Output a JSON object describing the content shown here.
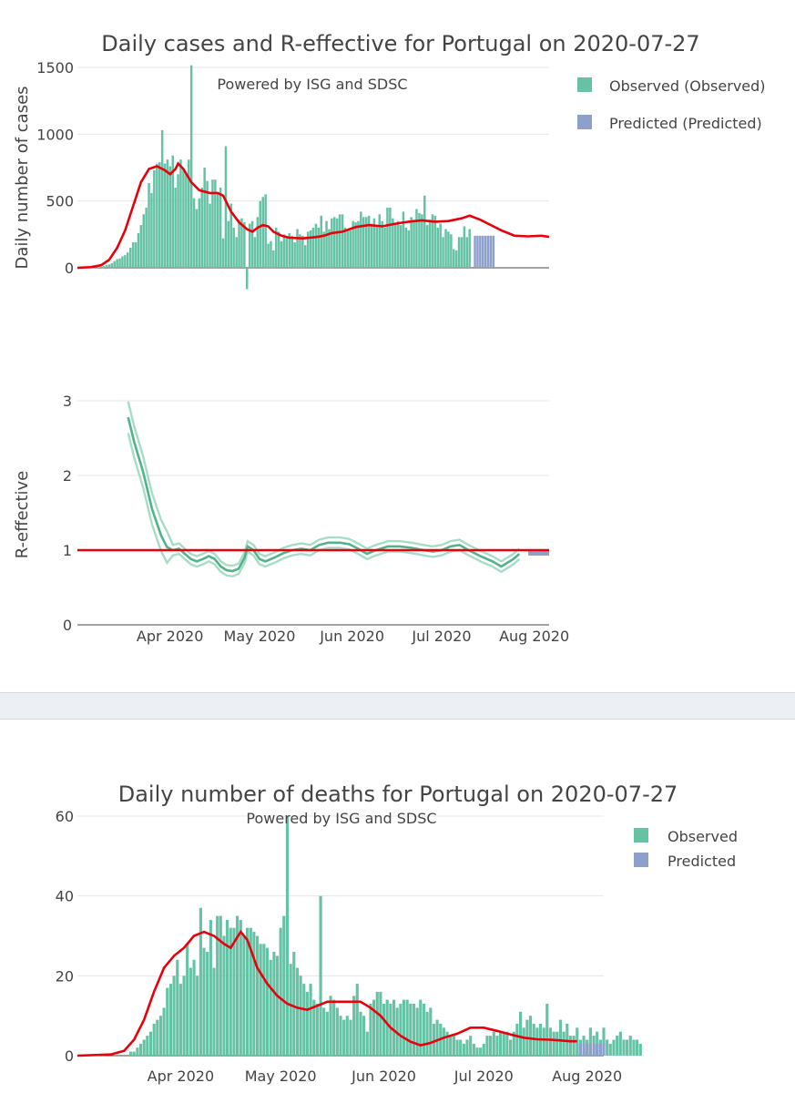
{
  "chart_data": [
    {
      "type": "bar",
      "title": "Daily cases and R-effective for Portugal on 2020-07-27",
      "annotation": "Powered by ISG and SDSC",
      "xlabel": "",
      "ylabel": "Daily number of cases",
      "ylim": [
        -170,
        1520
      ],
      "y_ticks": [
        0,
        500,
        1000,
        1500
      ],
      "x_range_days": [
        0,
        158
      ],
      "x_tick_labels": [
        "Apr 2020",
        "May 2020",
        "Jun 2020",
        "Jul 2020",
        "Aug 2020"
      ],
      "x_tick_days": [
        31,
        61,
        92,
        122,
        153
      ],
      "start_date": "2020-02-29",
      "legend": [
        "Observed (Observed)",
        "Predicted (Predicted)"
      ],
      "legend_position": "top-right",
      "colors": {
        "observed": "#66c2a5",
        "predicted": "#8da0cb",
        "smooth": "#e8000b"
      },
      "observed_first_day": 2,
      "observed": [
        0,
        0,
        2,
        2,
        3,
        4,
        5,
        8,
        12,
        19,
        25,
        35,
        50,
        65,
        70,
        85,
        95,
        115,
        150,
        190,
        190,
        260,
        320,
        400,
        450,
        635,
        560,
        730,
        780,
        790,
        1030,
        780,
        810,
        760,
        840,
        600,
        700,
        810,
        740,
        700,
        810,
        1516,
        520,
        440,
        520,
        600,
        750,
        650,
        480,
        660,
        660,
        560,
        600,
        220,
        910,
        350,
        480,
        300,
        230,
        360,
        370,
        340,
        -160,
        330,
        350,
        230,
        380,
        500,
        530,
        550,
        180,
        200,
        130,
        300,
        270,
        200,
        250,
        230,
        260,
        240,
        190,
        290,
        250,
        240,
        170,
        270,
        280,
        300,
        330,
        300,
        390,
        270,
        350,
        290,
        370,
        380,
        370,
        400,
        400,
        300,
        290,
        280,
        350,
        340,
        350,
        420,
        380,
        380,
        390,
        330,
        370,
        320,
        400,
        350,
        300,
        450,
        450,
        370,
        330,
        350,
        320,
        420,
        300,
        280,
        380,
        360,
        440,
        410,
        400,
        540,
        320,
        360,
        400,
        390,
        300,
        330,
        230,
        290,
        270,
        250,
        140,
        130,
        230,
        230,
        310,
        230,
        290
      ],
      "predicted_first_day": 150,
      "predicted": [
        240,
        240,
        240,
        240,
        240,
        240,
        240,
        240
      ],
      "smooth": [
        [
          0,
          0
        ],
        [
          5,
          5
        ],
        [
          9,
          20
        ],
        [
          12,
          60
        ],
        [
          15,
          150
        ],
        [
          18,
          280
        ],
        [
          21,
          460
        ],
        [
          24,
          640
        ],
        [
          27,
          740
        ],
        [
          30,
          760
        ],
        [
          33,
          730
        ],
        [
          35,
          700
        ],
        [
          37,
          740
        ],
        [
          38,
          780
        ],
        [
          40,
          740
        ],
        [
          43,
          640
        ],
        [
          46,
          580
        ],
        [
          50,
          560
        ],
        [
          53,
          560
        ],
        [
          55,
          540
        ],
        [
          58,
          420
        ],
        [
          61,
          340
        ],
        [
          64,
          290
        ],
        [
          66,
          270
        ],
        [
          68,
          300
        ],
        [
          70,
          320
        ],
        [
          72,
          310
        ],
        [
          74,
          270
        ],
        [
          77,
          240
        ],
        [
          80,
          225
        ],
        [
          85,
          220
        ],
        [
          90,
          230
        ],
        [
          93,
          240
        ],
        [
          96,
          260
        ],
        [
          100,
          270
        ],
        [
          105,
          305
        ],
        [
          110,
          320
        ],
        [
          115,
          310
        ],
        [
          120,
          330
        ],
        [
          125,
          345
        ],
        [
          130,
          355
        ],
        [
          135,
          345
        ],
        [
          140,
          350
        ],
        [
          145,
          370
        ],
        [
          148,
          390
        ],
        [
          152,
          360
        ],
        [
          156,
          320
        ],
        [
          160,
          280
        ],
        [
          165,
          240
        ],
        [
          170,
          235
        ],
        [
          175,
          240
        ],
        [
          178,
          232
        ]
      ]
    },
    {
      "type": "line",
      "title": "",
      "xlabel": "",
      "ylabel": "R-effective",
      "ylim": [
        0,
        3.2
      ],
      "y_ticks": [
        0,
        1,
        2,
        3
      ],
      "x_range_days": [
        0,
        158
      ],
      "x_tick_labels": [
        "Apr 2020",
        "May 2020",
        "Jun 2020",
        "Jul 2020",
        "Aug 2020"
      ],
      "x_tick_days": [
        31,
        61,
        92,
        122,
        153
      ],
      "reference_line": 1.0,
      "colors": {
        "r_mean": "#52b38a",
        "r_band": "#a7ddc6",
        "predicted": "#8da0cb",
        "reference": "#e8000b"
      },
      "r_effective": [
        [
          17,
          2.78
        ],
        [
          19,
          2.45
        ],
        [
          22,
          2.05
        ],
        [
          25,
          1.55
        ],
        [
          28,
          1.2
        ],
        [
          30,
          1.04
        ],
        [
          32,
          1.0
        ],
        [
          34,
          1.02
        ],
        [
          36,
          0.95
        ],
        [
          38,
          0.88
        ],
        [
          40,
          0.85
        ],
        [
          42,
          0.88
        ],
        [
          44,
          0.92
        ],
        [
          46,
          0.88
        ],
        [
          48,
          0.78
        ],
        [
          50,
          0.73
        ],
        [
          52,
          0.72
        ],
        [
          54,
          0.75
        ],
        [
          56,
          0.9
        ],
        [
          57,
          1.05
        ],
        [
          59,
          1.0
        ],
        [
          61,
          0.88
        ],
        [
          63,
          0.85
        ],
        [
          66,
          0.9
        ],
        [
          69,
          0.96
        ],
        [
          72,
          1.0
        ],
        [
          75,
          1.02
        ],
        [
          78,
          1.0
        ],
        [
          81,
          1.07
        ],
        [
          84,
          1.1
        ],
        [
          88,
          1.1
        ],
        [
          91,
          1.08
        ],
        [
          94,
          1.02
        ],
        [
          97,
          0.95
        ],
        [
          100,
          1.0
        ],
        [
          104,
          1.05
        ],
        [
          108,
          1.05
        ],
        [
          112,
          1.03
        ],
        [
          116,
          1.0
        ],
        [
          119,
          0.98
        ],
        [
          122,
          1.0
        ],
        [
          125,
          1.05
        ],
        [
          128,
          1.07
        ],
        [
          131,
          1.0
        ],
        [
          135,
          0.92
        ],
        [
          139,
          0.85
        ],
        [
          142,
          0.78
        ],
        [
          146,
          0.88
        ],
        [
          148,
          0.95
        ]
      ],
      "r_band_width": 0.07,
      "predicted_r": [
        [
          151,
          0.97
        ],
        [
          158,
          0.97
        ]
      ]
    },
    {
      "type": "bar",
      "title": "Daily number of deaths for Portugal on 2020-07-27",
      "annotation": "Powered by ISG and SDSC",
      "xlabel": "",
      "ylabel": "",
      "ylim": [
        0,
        61
      ],
      "y_ticks": [
        0,
        20,
        40,
        60
      ],
      "x_range_days": [
        0,
        158
      ],
      "x_tick_labels": [
        "Apr 2020",
        "May 2020",
        "Jun 2020",
        "Jul 2020",
        "Aug 2020"
      ],
      "x_tick_days": [
        31,
        61,
        92,
        122,
        153
      ],
      "start_date": "2020-02-29",
      "legend": [
        "Observed",
        "Predicted"
      ],
      "legend_position": "top-right",
      "colors": {
        "observed": "#66c2a5",
        "predicted": "#8da0cb",
        "smooth": "#e8000b"
      },
      "observed_first_day": 16,
      "observed": [
        1,
        1,
        2,
        3,
        4,
        5,
        6,
        8,
        9,
        10,
        12,
        17,
        18,
        20,
        24,
        18,
        20,
        28,
        22,
        24,
        20,
        37,
        27,
        26,
        34,
        22,
        35,
        35,
        30,
        34,
        32,
        32,
        35,
        34,
        30,
        32,
        32,
        31,
        30,
        28,
        28,
        27,
        24,
        26,
        25,
        32,
        35,
        60,
        23,
        26,
        22,
        20,
        18,
        16,
        18,
        14,
        13,
        40,
        12,
        11,
        15,
        14,
        12,
        10,
        9,
        10,
        9,
        15,
        18,
        11,
        10,
        6,
        13,
        14,
        16,
        16,
        13,
        14,
        13,
        14,
        12,
        13,
        14,
        14,
        13,
        13,
        12,
        14,
        13,
        11,
        12,
        8,
        9,
        8,
        7,
        6,
        5,
        5,
        4,
        4,
        3,
        4,
        5,
        3,
        2,
        2,
        3,
        5,
        5,
        6,
        5,
        6,
        6,
        6,
        4,
        6,
        8,
        11,
        7,
        9,
        10,
        8,
        7,
        8,
        7,
        13,
        7,
        6,
        6,
        9,
        6,
        8,
        5,
        5,
        7,
        4,
        5,
        4,
        7,
        5,
        6,
        4,
        7,
        4,
        3,
        4,
        5,
        6,
        4,
        4,
        5,
        4,
        4,
        3
      ],
      "predicted_first_day": 151,
      "predicted": [
        3,
        3,
        3,
        3,
        3,
        3,
        3,
        3
      ],
      "smooth": [
        [
          0,
          0
        ],
        [
          10,
          0.3
        ],
        [
          14,
          1.2
        ],
        [
          17,
          4
        ],
        [
          20,
          9
        ],
        [
          23,
          16
        ],
        [
          26,
          22
        ],
        [
          29,
          25
        ],
        [
          32,
          27
        ],
        [
          35,
          30
        ],
        [
          38,
          31
        ],
        [
          41,
          30
        ],
        [
          44,
          28
        ],
        [
          46,
          27
        ],
        [
          49,
          31
        ],
        [
          51,
          29
        ],
        [
          54,
          22
        ],
        [
          57,
          18
        ],
        [
          60,
          15
        ],
        [
          63,
          13
        ],
        [
          66,
          12
        ],
        [
          69,
          11.5
        ],
        [
          72,
          12.5
        ],
        [
          75,
          13.5
        ],
        [
          80,
          13.5
        ],
        [
          85,
          13.5
        ],
        [
          88,
          12
        ],
        [
          91,
          10
        ],
        [
          94,
          7
        ],
        [
          97,
          5
        ],
        [
          100,
          3.5
        ],
        [
          103,
          2.6
        ],
        [
          106,
          3.2
        ],
        [
          110,
          4.5
        ],
        [
          114,
          5.5
        ],
        [
          118,
          7
        ],
        [
          122,
          7
        ],
        [
          126,
          6.2
        ],
        [
          130,
          5.3
        ],
        [
          134,
          4.5
        ],
        [
          138,
          4.1
        ],
        [
          142,
          4.0
        ],
        [
          145,
          3.8
        ],
        [
          148,
          3.6
        ],
        [
          150,
          3.6
        ]
      ]
    }
  ]
}
